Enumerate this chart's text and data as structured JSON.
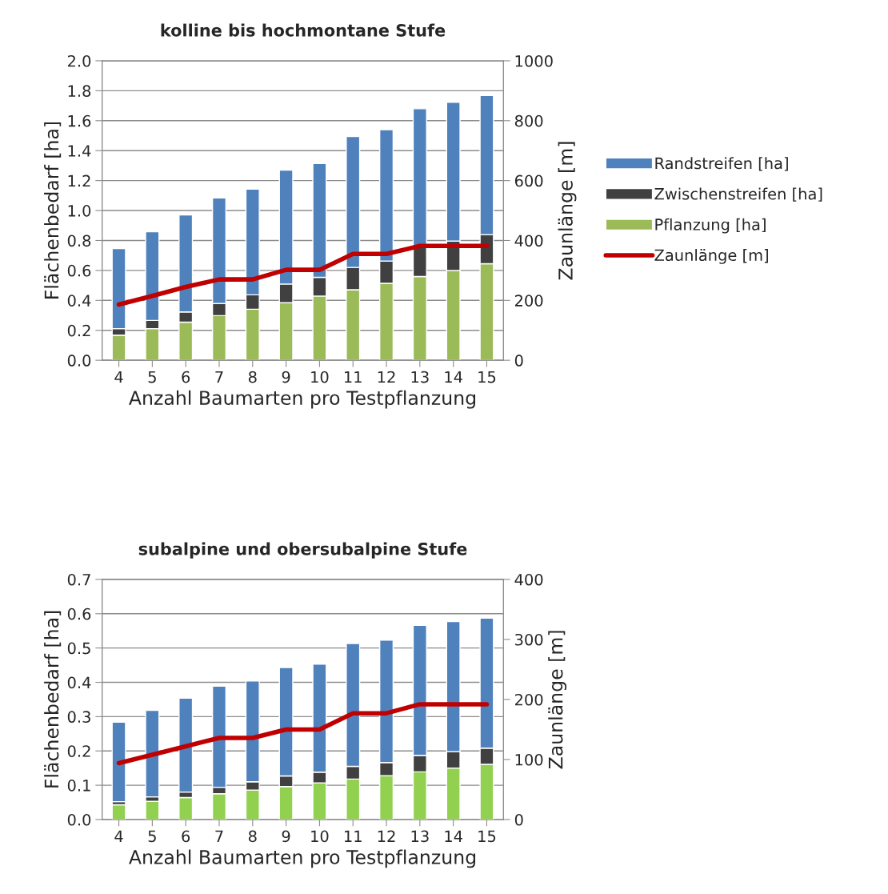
{
  "chart_data": [
    {
      "type": "bar",
      "stacked": true,
      "title": "kolline bis hochmontane Stufe",
      "xlabel": "Anzahl Baumarten pro Testpflanzung",
      "ylabel": "Flächenbedarf [ha]",
      "y2label": "Zaunlänge [m]",
      "categories": [
        "4",
        "5",
        "6",
        "7",
        "8",
        "9",
        "10",
        "11",
        "12",
        "13",
        "14",
        "15"
      ],
      "ylim": [
        0,
        2.0
      ],
      "yticks": [
        {
          "value": 0,
          "label": "0.0"
        },
        {
          "value": 0.2,
          "label": "0.2"
        },
        {
          "value": 0.4,
          "label": "0.4"
        },
        {
          "value": 0.6,
          "label": "0.6"
        },
        {
          "value": 0.8,
          "label": "0.8"
        },
        {
          "value": 1.0,
          "label": "1.0"
        },
        {
          "value": 1.2,
          "label": "1.2"
        },
        {
          "value": 1.4,
          "label": "1.4"
        },
        {
          "value": 1.6,
          "label": "1.6"
        },
        {
          "value": 1.8,
          "label": "1.8"
        },
        {
          "value": 2.0,
          "label": "2.0"
        }
      ],
      "y2lim": [
        0,
        1000
      ],
      "y2ticks": [
        0,
        200,
        400,
        600,
        800,
        1000
      ],
      "grid": "y",
      "legend": "right",
      "series": [
        {
          "name": "Pflanzung [ha]",
          "color": "#9bbb59",
          "values": [
            0.168,
            0.211,
            0.255,
            0.298,
            0.341,
            0.384,
            0.429,
            0.471,
            0.514,
            0.559,
            0.6,
            0.645
          ]
        },
        {
          "name": "Zwischenstreifen [ha]",
          "color": "#404040",
          "values": [
            0.043,
            0.055,
            0.068,
            0.081,
            0.096,
            0.125,
            0.125,
            0.149,
            0.149,
            0.196,
            0.196,
            0.194
          ]
        },
        {
          "name": "Randstreifen [ha]",
          "color": "#4f81bd",
          "values": [
            0.535,
            0.593,
            0.647,
            0.705,
            0.706,
            0.761,
            0.76,
            0.875,
            0.877,
            0.925,
            0.927,
            0.929
          ]
        },
        {
          "name": "Zaunlänge [m]",
          "type": "line",
          "axis": "y2",
          "color": "#c00000",
          "values": [
            186,
            215,
            245,
            270,
            270,
            302,
            302,
            355,
            355,
            382,
            382,
            382
          ]
        }
      ]
    },
    {
      "type": "bar",
      "stacked": true,
      "title": "subalpine und obersubalpine Stufe",
      "xlabel": "Anzahl Baumarten pro Testpflanzung",
      "ylabel": "Flächenbedarf [ha]",
      "y2label": "Zaunlänge [m]",
      "categories": [
        "4",
        "5",
        "6",
        "7",
        "8",
        "9",
        "10",
        "11",
        "12",
        "13",
        "14",
        "15"
      ],
      "ylim": [
        0,
        0.7
      ],
      "yticks": [
        {
          "value": 0,
          "label": "0.0"
        },
        {
          "value": 0.1,
          "label": "0.1"
        },
        {
          "value": 0.2,
          "label": "0.2"
        },
        {
          "value": 0.3,
          "label": "0.3"
        },
        {
          "value": 0.4,
          "label": "0.4"
        },
        {
          "value": 0.5,
          "label": "0.5"
        },
        {
          "value": 0.6,
          "label": "0.6"
        },
        {
          "value": 0.7,
          "label": "0.7"
        }
      ],
      "y2lim": [
        0,
        400
      ],
      "y2ticks": [
        0,
        100,
        200,
        300,
        400
      ],
      "grid": "y",
      "series": [
        {
          "color": "#92d050",
          "values": [
            0.043,
            0.053,
            0.064,
            0.075,
            0.086,
            0.096,
            0.107,
            0.118,
            0.128,
            0.139,
            0.15,
            0.161
          ]
        },
        {
          "color": "#404040",
          "values": [
            0.009,
            0.013,
            0.016,
            0.019,
            0.024,
            0.031,
            0.031,
            0.037,
            0.038,
            0.048,
            0.048,
            0.047
          ]
        },
        {
          "color": "#4f81bd",
          "values": [
            0.232,
            0.252,
            0.274,
            0.295,
            0.294,
            0.316,
            0.315,
            0.358,
            0.357,
            0.379,
            0.379,
            0.379
          ]
        },
        {
          "type": "line",
          "axis": "y2",
          "color": "#c00000",
          "values": [
            94,
            108,
            122,
            136,
            136,
            150,
            150,
            177,
            177,
            192,
            192,
            192
          ]
        }
      ]
    }
  ]
}
